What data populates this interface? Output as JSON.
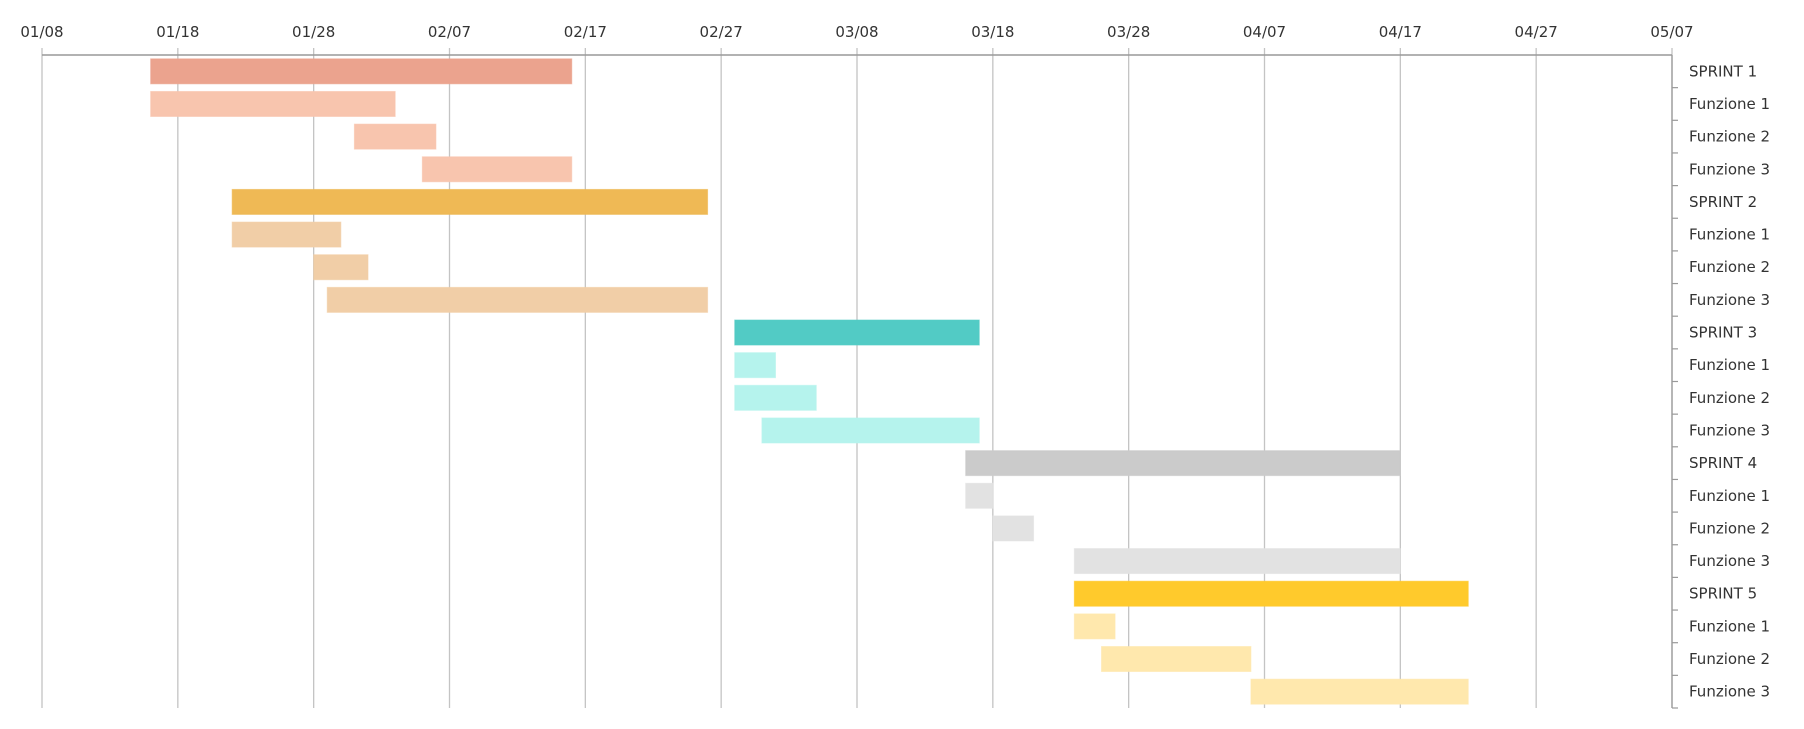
{
  "chart_data": {
    "type": "gantt",
    "title": "",
    "x_axis": {
      "position": "top",
      "range": [
        "01/08",
        "05/07"
      ],
      "tick_labels": [
        "01/08",
        "01/18",
        "01/28",
        "02/07",
        "02/17",
        "02/27",
        "03/08",
        "03/18",
        "03/28",
        "04/07",
        "04/17",
        "04/27",
        "05/07"
      ],
      "grid": true
    },
    "y_axis": {
      "position": "right"
    },
    "rows": [
      {
        "label": "SPRINT 1",
        "start": "01/16",
        "end": "02/16",
        "color": "#eba38e"
      },
      {
        "label": "Funzione 1",
        "start": "01/16",
        "end": "02/03",
        "color": "#f8c5ae"
      },
      {
        "label": "Funzione 2",
        "start": "01/31",
        "end": "02/06",
        "color": "#f8c5ae"
      },
      {
        "label": "Funzione 3",
        "start": "02/05",
        "end": "02/16",
        "color": "#f8c5ae"
      },
      {
        "label": "SPRINT 2",
        "start": "01/22",
        "end": "02/26",
        "color": "#efb955"
      },
      {
        "label": "Funzione 1",
        "start": "01/22",
        "end": "01/30",
        "color": "#f1cea7"
      },
      {
        "label": "Funzione 2",
        "start": "01/28",
        "end": "02/01",
        "color": "#f1cea7"
      },
      {
        "label": "Funzione 3",
        "start": "01/29",
        "end": "02/26",
        "color": "#f1cea7"
      },
      {
        "label": "SPRINT 3",
        "start": "02/28",
        "end": "03/17",
        "color": "#52cbc5"
      },
      {
        "label": "Funzione 1",
        "start": "02/28",
        "end": "03/02",
        "color": "#b5f3ed"
      },
      {
        "label": "Funzione 2",
        "start": "02/28",
        "end": "03/05",
        "color": "#b5f3ed"
      },
      {
        "label": "Funzione 3",
        "start": "03/01",
        "end": "03/17",
        "color": "#b5f3ed"
      },
      {
        "label": "SPRINT 4",
        "start": "03/16",
        "end": "04/17",
        "color": "#cbcbcb"
      },
      {
        "label": "Funzione 1",
        "start": "03/16",
        "end": "03/18",
        "color": "#e2e2e2"
      },
      {
        "label": "Funzione 2",
        "start": "03/18",
        "end": "03/21",
        "color": "#e2e2e2"
      },
      {
        "label": "Funzione 3",
        "start": "03/24",
        "end": "04/17",
        "color": "#e2e2e2"
      },
      {
        "label": "SPRINT 5",
        "start": "03/24",
        "end": "04/22",
        "color": "#ffca2c"
      },
      {
        "label": "Funzione 1",
        "start": "03/24",
        "end": "03/27",
        "color": "#ffe8ad"
      },
      {
        "label": "Funzione 2",
        "start": "03/26",
        "end": "04/06",
        "color": "#ffe8ad"
      },
      {
        "label": "Funzione 3",
        "start": "04/06",
        "end": "04/22",
        "color": "#ffe8ad"
      }
    ]
  }
}
